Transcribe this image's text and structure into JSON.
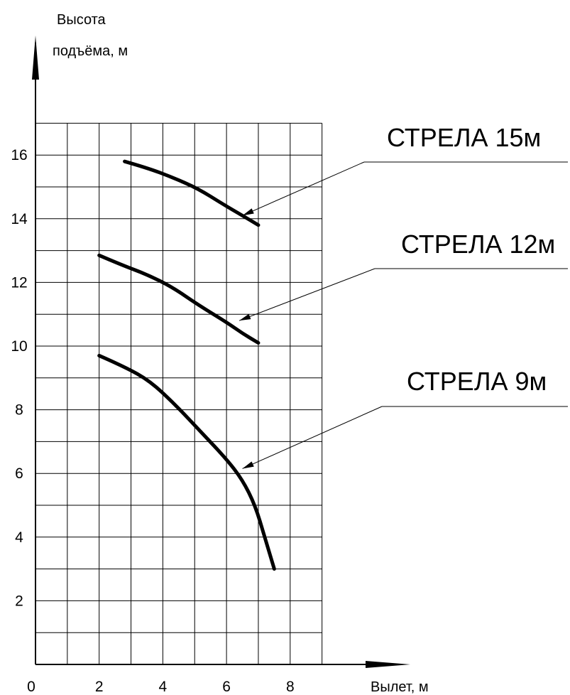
{
  "chart_data": {
    "type": "line",
    "ylabel_line1": "Высота",
    "ylabel_line2": "подъёма, м",
    "xlabel": "Вылет, м",
    "x_origin_label": "0",
    "xlim": [
      0,
      9
    ],
    "ylim": [
      0,
      17
    ],
    "x_ticks": [
      "2",
      "4",
      "6",
      "8"
    ],
    "y_ticks": [
      "2",
      "4",
      "6",
      "8",
      "10",
      "12",
      "14",
      "16"
    ],
    "grid": true,
    "series": [
      {
        "name": "СТРЕЛА 15м",
        "points": [
          [
            2.8,
            15.8
          ],
          [
            3.5,
            15.6
          ],
          [
            4.3,
            15.3
          ],
          [
            5.1,
            14.95
          ],
          [
            5.9,
            14.45
          ],
          [
            6.5,
            14.1
          ],
          [
            7.0,
            13.8
          ]
        ],
        "label_anchor": [
          6.5,
          14.1
        ]
      },
      {
        "name": "СТРЕЛА 12м",
        "points": [
          [
            2.0,
            12.85
          ],
          [
            2.7,
            12.55
          ],
          [
            3.5,
            12.25
          ],
          [
            4.3,
            11.85
          ],
          [
            5.1,
            11.3
          ],
          [
            6.0,
            10.75
          ],
          [
            6.5,
            10.4
          ],
          [
            7.0,
            10.1
          ]
        ],
        "label_anchor": [
          6.4,
          10.8
        ]
      },
      {
        "name": "СТРЕЛА 9м",
        "points": [
          [
            2.0,
            9.7
          ],
          [
            2.8,
            9.35
          ],
          [
            3.6,
            8.9
          ],
          [
            4.4,
            8.15
          ],
          [
            5.2,
            7.3
          ],
          [
            6.0,
            6.45
          ],
          [
            6.5,
            5.8
          ],
          [
            6.9,
            5.0
          ],
          [
            7.2,
            4.0
          ],
          [
            7.5,
            3.0
          ]
        ],
        "label_anchor": [
          6.5,
          6.15
        ]
      }
    ]
  }
}
